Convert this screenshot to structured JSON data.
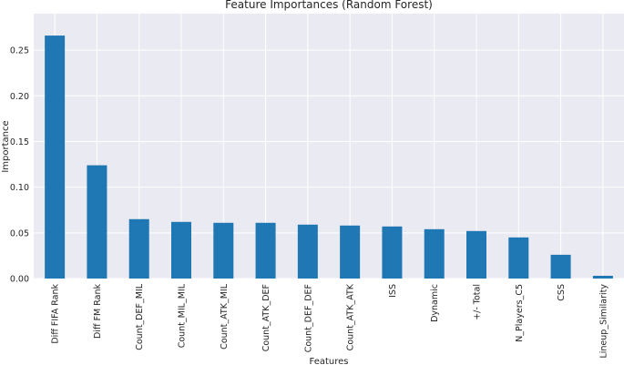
{
  "chart_data": {
    "type": "bar",
    "title": "Feature Importances (Random Forest)",
    "xlabel": "Features",
    "ylabel": "Importance",
    "categories": [
      "Diff FIFA Rank",
      "Diff FM Rank",
      "Count_DEF_MIL",
      "Count_MIL_MIL",
      "Count_ATK_MIL",
      "Count_ATK_DEF",
      "Count_DEF_DEF",
      "Count_ATK_ATK",
      "ISS",
      "Dynamic",
      "+/- Total",
      "N_Players_C5",
      "CSS",
      "Lineup_Similarity"
    ],
    "values": [
      0.266,
      0.124,
      0.065,
      0.062,
      0.061,
      0.061,
      0.059,
      0.058,
      0.057,
      0.054,
      0.052,
      0.045,
      0.026,
      0.003
    ],
    "ylim": [
      0,
      0.29
    ],
    "yticks": [
      "0.00",
      "0.05",
      "0.10",
      "0.15",
      "0.20",
      "0.25"
    ],
    "bar_color": "#1f77b4",
    "background": "#eaeaf2",
    "grid": true,
    "grid_color": "#ffffff"
  }
}
